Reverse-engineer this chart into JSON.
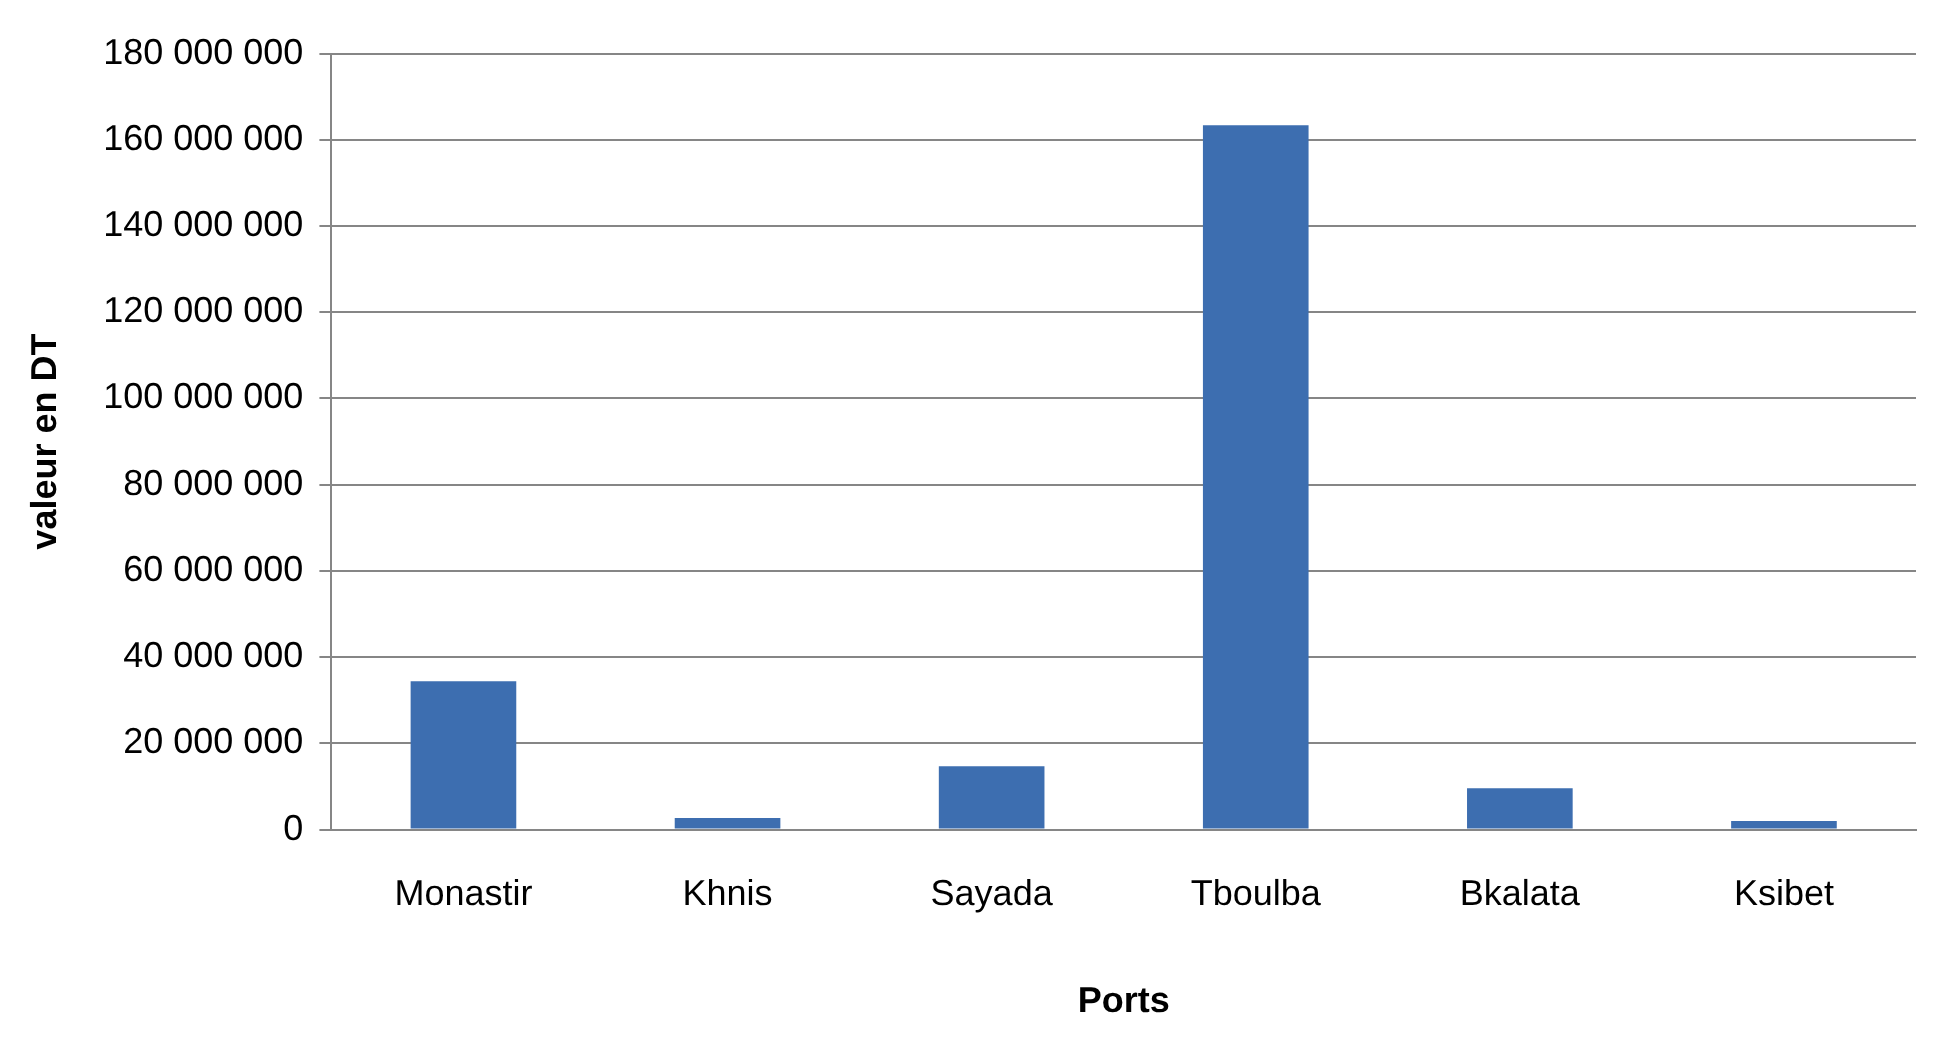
{
  "chart_data": {
    "type": "bar",
    "xlabel": "Ports",
    "ylabel": "valeur en DT",
    "categories": [
      "Monastir",
      "Khnis",
      "Sayada",
      "Tboulba",
      "Bkalata",
      "Ksibet"
    ],
    "values": [
      34400000,
      2700000,
      14700000,
      163400000,
      9600000,
      2000000
    ],
    "color": "#3d6eb0",
    "ylim": [
      0,
      180000000
    ],
    "yticks": [
      {
        "value": 0,
        "label": "0"
      },
      {
        "value": 20000000,
        "label": "20 000 000"
      },
      {
        "value": 40000000,
        "label": "40 000 000"
      },
      {
        "value": 60000000,
        "label": "60 000 000"
      },
      {
        "value": 80000000,
        "label": "80 000 000"
      },
      {
        "value": 100000000,
        "label": "100 000 000"
      },
      {
        "value": 120000000,
        "label": "120 000 000"
      },
      {
        "value": 140000000,
        "label": "140 000 000"
      },
      {
        "value": 160000000,
        "label": "160 000 000"
      },
      {
        "value": 180000000,
        "label": "180 000 000"
      }
    ],
    "grid": "y",
    "legend": false
  }
}
